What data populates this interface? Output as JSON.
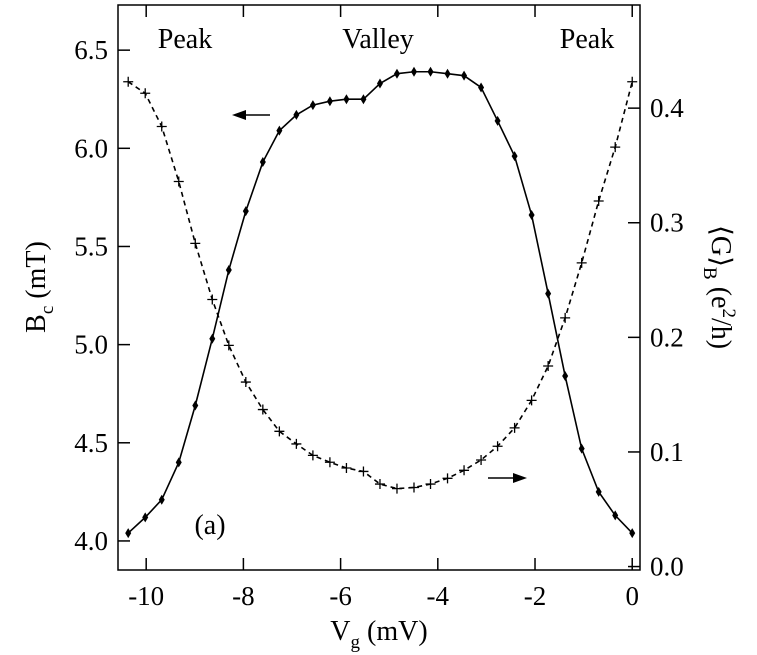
{
  "chart_data": {
    "type": "line",
    "xlabel": [
      "V",
      "g",
      " (mV)"
    ],
    "ylabel": [
      "B",
      "c",
      " (mT)"
    ],
    "y2label": [
      "⟨G⟩",
      "B",
      " (e",
      "2",
      "/h)"
    ],
    "annotations": [
      "Peak",
      "Valley",
      "Peak",
      "(a)"
    ],
    "x": [
      -10.37,
      -10.02,
      -9.68,
      -9.33,
      -8.99,
      -8.64,
      -8.3,
      -7.95,
      -7.6,
      -7.26,
      -6.91,
      -6.57,
      -6.22,
      -5.88,
      -5.53,
      -5.19,
      -4.84,
      -4.49,
      -4.15,
      -3.8,
      -3.46,
      -3.11,
      -2.77,
      -2.42,
      -2.07,
      -1.73,
      -1.38,
      -1.04,
      -0.69,
      -0.35,
      0
    ],
    "series": [
      {
        "color": "#000",
        "marker": "diamond",
        "dash": false,
        "values": [
          4.04,
          4.12,
          4.21,
          4.4,
          4.69,
          5.03,
          5.38,
          5.68,
          5.93,
          6.09,
          6.17,
          6.22,
          6.24,
          6.25,
          6.25,
          6.33,
          6.38,
          6.39,
          6.39,
          6.38,
          6.37,
          6.31,
          6.14,
          5.96,
          5.66,
          5.26,
          4.84,
          4.47,
          4.25,
          4.13,
          4.04
        ]
      },
      {
        "color": "#000",
        "marker": "plus",
        "dash": true,
        "axis": "y2",
        "values": [
          0.423,
          0.413,
          0.384,
          0.336,
          0.282,
          0.233,
          0.193,
          0.161,
          0.137,
          0.118,
          0.107,
          0.097,
          0.091,
          0.086,
          0.083,
          0.072,
          0.068,
          0.069,
          0.072,
          0.077,
          0.084,
          0.093,
          0.105,
          0.121,
          0.145,
          0.175,
          0.217,
          0.265,
          0.319,
          0.366,
          0.423
        ]
      }
    ],
    "xlim": [
      -10.58,
      0.16
    ],
    "xticks": [
      -10,
      -8,
      -6,
      -4,
      -2,
      0
    ],
    "ylim": [
      3.852,
      6.73
    ],
    "yticks": [
      {
        "value": 4.0,
        "label": "4.0"
      },
      4.5,
      {
        "value": 5.0,
        "label": "5.0"
      },
      5.5,
      {
        "value": 6.0,
        "label": "6.0"
      },
      6.5
    ],
    "y2lim": [
      -0.003,
      0.49
    ],
    "y2ticks": [
      {
        "value": 0.0,
        "label": "0.0"
      },
      0.1,
      0.2,
      0.3,
      0.4
    ]
  }
}
